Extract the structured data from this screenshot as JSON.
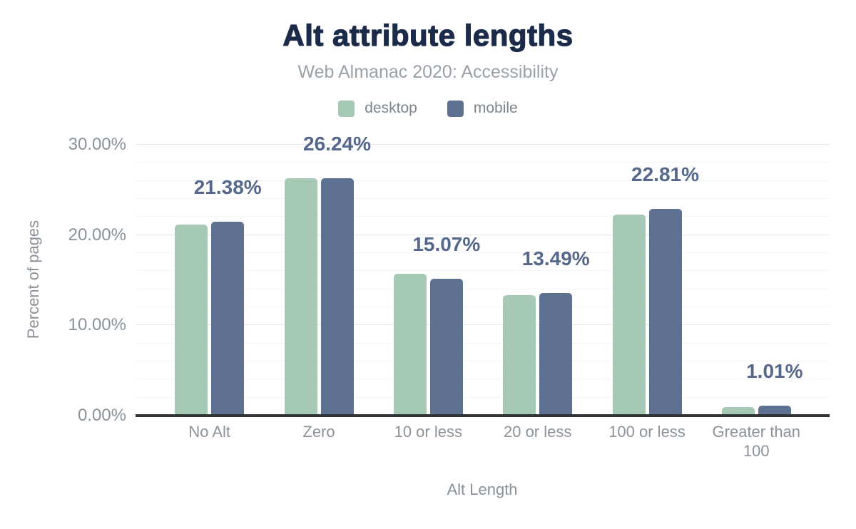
{
  "header": {
    "title": "Alt attribute lengths",
    "subtitle": "Web Almanac 2020: Accessibility"
  },
  "axes": {
    "x_title": "Alt Length",
    "y_title": "Percent of pages",
    "y_tick_labels": [
      "0.00%",
      "10.00%",
      "20.00%",
      "30.00%"
    ],
    "y_tick_values": [
      0,
      10,
      20,
      30
    ]
  },
  "chart_data": {
    "type": "bar",
    "title": "Alt attribute lengths",
    "subtitle": "Web Almanac 2020: Accessibility",
    "categories": [
      "No Alt",
      "Zero",
      "10 or less",
      "20 or less",
      "100 or less",
      "Greater than 100"
    ],
    "series": [
      {
        "name": "desktop",
        "color": "#a5c9b4",
        "values": [
          21.1,
          26.2,
          15.6,
          13.3,
          22.2,
          0.9
        ]
      },
      {
        "name": "mobile",
        "color": "#5f7190",
        "values": [
          21.38,
          26.24,
          15.07,
          13.49,
          22.81,
          1.01
        ]
      }
    ],
    "data_labels": {
      "series": "mobile",
      "texts": [
        "21.38%",
        "26.24%",
        "15.07%",
        "13.49%",
        "22.81%",
        "1.01%"
      ]
    },
    "xlabel": "Alt Length",
    "ylabel": "Percent of pages",
    "ylim": [
      0,
      30
    ],
    "y_major_step": 10,
    "y_minor_step": 2,
    "grid": true,
    "legend_position": "top"
  },
  "colors": {
    "title": "#1b2b49",
    "subtitle": "#9aa1a8",
    "legend_text": "#7d848c",
    "axis_text": "#8b9199",
    "data_label": "#55688c",
    "grid_major": "#e4e6e8",
    "grid_minor": "#f3f4f6",
    "baseline": "#313335",
    "desktop_bar": "#a5c9b4",
    "mobile_bar": "#5f7190"
  }
}
